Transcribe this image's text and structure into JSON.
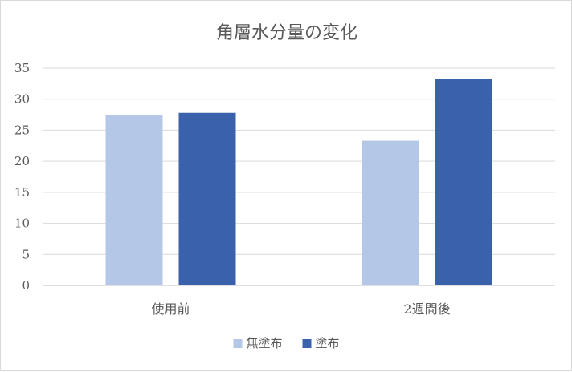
{
  "chart_data": {
    "type": "bar",
    "title": "角層水分量の変化",
    "categories": [
      "使用前",
      "2週間後"
    ],
    "series": [
      {
        "name": "無塗布",
        "values": [
          27.4,
          23.3
        ],
        "color": "#b4c7e7"
      },
      {
        "name": "塗布",
        "values": [
          27.8,
          33.2
        ],
        "color": "#3a62ac"
      }
    ],
    "ylim": [
      0,
      35
    ],
    "yticks": [
      0,
      5,
      10,
      15,
      20,
      25,
      30,
      35
    ],
    "grid": true,
    "legend": "bottom",
    "xlabel": "",
    "ylabel": ""
  }
}
